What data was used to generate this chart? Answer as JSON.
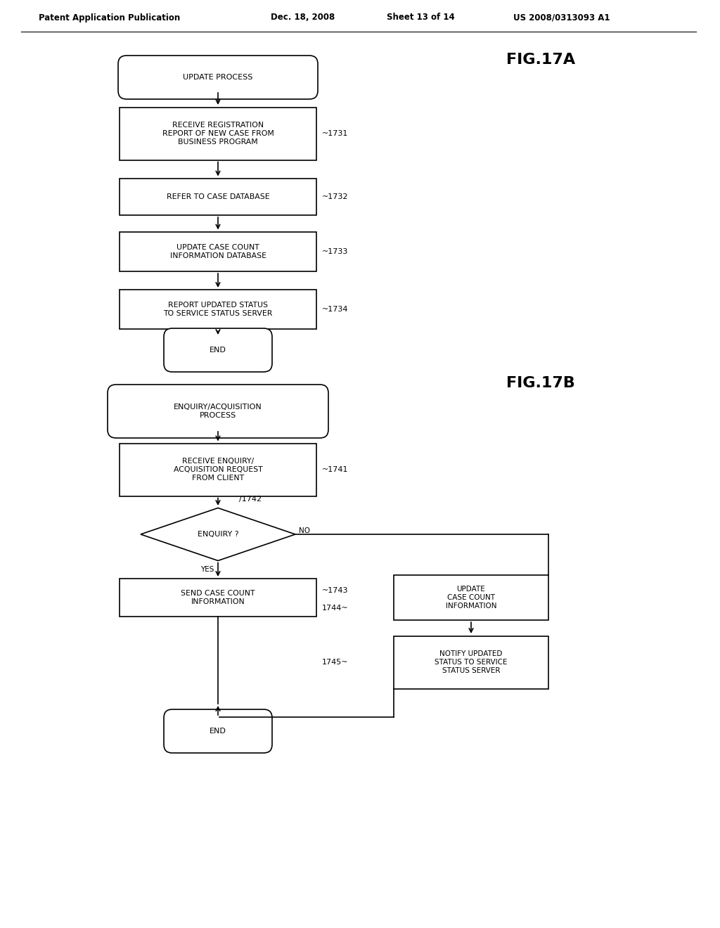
{
  "bg_color": "#ffffff",
  "header_text": "Patent Application Publication",
  "header_date": "Dec. 18, 2008",
  "header_sheet": "Sheet 13 of 14",
  "header_patent": "US 2008/0313093 A1",
  "fig17a_label": "FIG.17A",
  "fig17b_label": "FIG.17B",
  "line_color": "#000000",
  "box_color": "#ffffff",
  "text_color": "#000000",
  "font_family": "DejaVu Sans",
  "flowA": {
    "start_label": "UPDATE PROCESS",
    "steps": [
      {
        "id": "1731",
        "text": "RECEIVE REGISTRATION\nREPORT OF NEW CASE FROM\nBUSINESS PROGRAM"
      },
      {
        "id": "1732",
        "text": "REFER TO CASE DATABASE"
      },
      {
        "id": "1733",
        "text": "UPDATE CASE COUNT\nINFORMATION DATABASE"
      },
      {
        "id": "1734",
        "text": "REPORT UPDATED STATUS\nTO SERVICE STATUS SERVER"
      }
    ],
    "end_label": "END"
  },
  "flowB": {
    "start_label": "ENQUIRY/ACQUISITION\nPROCESS",
    "steps": [
      {
        "id": "1741",
        "text": "RECEIVE ENQUIRY/\nACQUISITION REQUEST\nFROM CLIENT"
      }
    ],
    "diamond": {
      "id": "1742",
      "text": "ENQUIRY ?"
    },
    "yes_box": {
      "id": "1743",
      "text": "SEND CASE COUNT\nINFORMATION"
    },
    "right_box1": {
      "id": "1744",
      "text": "UPDATE\nCASE COUNT\nINFORMATION"
    },
    "right_box2": {
      "id": "1745",
      "text": "NOTIFY UPDATED\nSTATUS TO SERVICE\nSTATUS SERVER"
    },
    "end_label": "END"
  }
}
